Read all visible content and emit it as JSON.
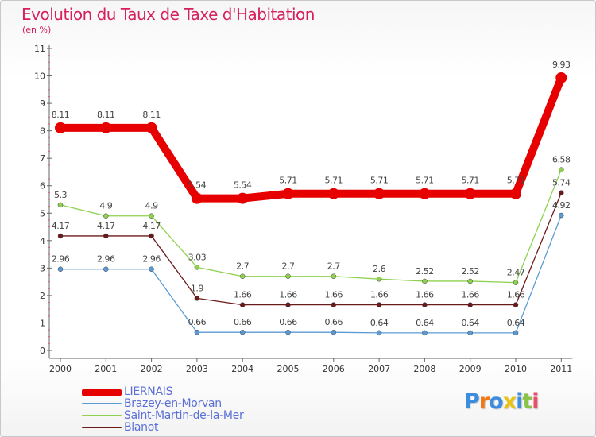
{
  "title": "Evolution du Taux de Taxe d'Habitation",
  "unit_label": "(en %)",
  "chart_data": {
    "type": "line",
    "title": "Evolution du Taux de Taxe d'Habitation",
    "ylabel": "(en %)",
    "xlabel": "",
    "x": [
      "2000",
      "2001",
      "2002",
      "2003",
      "2004",
      "2005",
      "2006",
      "2007",
      "2008",
      "2009",
      "2010",
      "2011"
    ],
    "ylim": [
      0,
      11
    ],
    "yticks": [
      "0",
      "1",
      "2",
      "3",
      "4",
      "5",
      "6",
      "7",
      "8",
      "9",
      "10",
      "11"
    ],
    "grid": false,
    "legend_position": "bottom-left",
    "series": [
      {
        "name": "LIERNAIS",
        "color": "#e60000",
        "values": [
          8.11,
          8.11,
          8.11,
          5.54,
          5.54,
          5.71,
          5.71,
          5.71,
          5.71,
          5.71,
          5.71,
          9.93
        ],
        "labels": [
          "8.11",
          "8.11",
          "8.11",
          "5.54",
          "5.54",
          "5.71",
          "5.71",
          "5.71",
          "5.71",
          "5.71",
          "5.71",
          "9.93"
        ]
      },
      {
        "name": "Brazey-en-Morvan",
        "color": "#5b9bd5",
        "values": [
          2.96,
          2.96,
          2.96,
          0.66,
          0.66,
          0.66,
          0.66,
          0.64,
          0.64,
          0.64,
          0.64,
          4.92
        ],
        "labels": [
          "2.96",
          "2.96",
          "2.96",
          "0.66",
          "0.66",
          "0.66",
          "0.66",
          "0.64",
          "0.64",
          "0.64",
          "0.64",
          "4.92"
        ]
      },
      {
        "name": "Saint-Martin-de-la-Mer",
        "color": "#8fd14f",
        "values": [
          5.3,
          4.9,
          4.9,
          3.03,
          2.7,
          2.7,
          2.7,
          2.6,
          2.52,
          2.52,
          2.47,
          6.58
        ],
        "labels": [
          "5.3",
          "4.9",
          "4.9",
          "3.03",
          "2.7",
          "2.7",
          "2.7",
          "2.6",
          "2.52",
          "2.52",
          "2.47",
          "6.58"
        ]
      },
      {
        "name": "Blanot",
        "color": "#6b1a1a",
        "values": [
          4.17,
          4.17,
          4.17,
          1.9,
          1.66,
          1.66,
          1.66,
          1.66,
          1.66,
          1.66,
          1.66,
          5.74
        ],
        "labels": [
          "4.17",
          "4.17",
          "4.17",
          "1.9",
          "1.66",
          "1.66",
          "1.66",
          "1.66",
          "1.66",
          "1.66",
          "1.66",
          "5.74"
        ]
      }
    ]
  },
  "logo": {
    "letters": [
      {
        "char": "P",
        "color": "#3c8de0"
      },
      {
        "char": "r",
        "color": "#f07a1a"
      },
      {
        "char": "o",
        "color": "#3c8de0"
      },
      {
        "char": "x",
        "color": "#e9c21a"
      },
      {
        "char": "i",
        "color": "#3c8de0"
      },
      {
        "char": "t",
        "color": "#8bc34a"
      },
      {
        "char": "i",
        "color": "#e94b6a"
      }
    ]
  }
}
